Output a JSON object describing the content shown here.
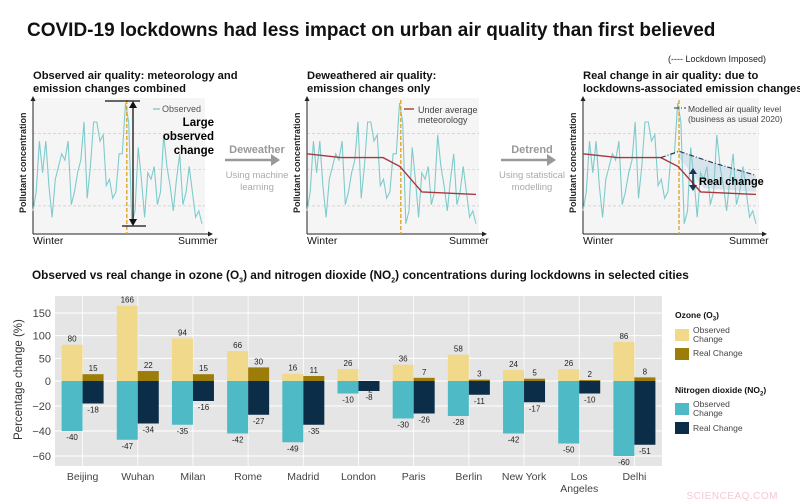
{
  "title": "COVID-19 lockdowns had less impact on urban air quality than first believed",
  "lockdown_legend": "(---- Lockdown Imposed)",
  "panels": [
    {
      "title_line1": "Observed air quality: meteorology and",
      "title_line2": "emission changes combined",
      "legend": "Observed",
      "annotation_line1": "Large observed",
      "annotation_line2": "change",
      "ylabel": "Pollutant concentration",
      "x_start": "Winter",
      "x_end": "Summer"
    },
    {
      "title_line1": "Deweathered air quality:",
      "title_line2": "emission changes only",
      "legend_line1": "Under average",
      "legend_line2": "meteorology",
      "ylabel": "Pollutant concentration",
      "x_start": "Winter",
      "x_end": "Summer"
    },
    {
      "title_line1": "Real change in air quality: due to",
      "title_line2": "lockdowns-associated emission changes",
      "legend_line1": "Modelled air quality level",
      "legend_line2": "(business as usual 2020)",
      "annotation": "Real change",
      "ylabel": "Pollutant concentration",
      "x_start": "Winter",
      "x_end": "Summer"
    }
  ],
  "steps": [
    {
      "label": "Deweather",
      "sub_line1": "Using machine",
      "sub_line2": "learning"
    },
    {
      "label": "Detrend",
      "sub_line1": "Using statistical",
      "sub_line2": "modelling"
    }
  ],
  "colors": {
    "observed_line": "#7fcbcc",
    "deweathered_line": "#a8383f",
    "modelled_line": "#1d3550",
    "lockdown": "#e0a020",
    "o3_observed": "#f0d98a",
    "o3_real": "#9c7d0a",
    "no2_observed": "#4dbac6",
    "no2_real": "#0c2d48"
  },
  "chart_title": "Observed vs real change in ozone (O3) and nitrogen dioxide (NO2) concentrations during lockdowns in selected cities",
  "chart_data": {
    "type": "bar",
    "title": "Observed vs real change in ozone (O3) and nitrogen dioxide (NO2) concentrations during lockdowns in selected cities",
    "xlabel": "",
    "ylabel": "Percentage change (%)",
    "y_ticks": [
      150,
      100,
      50,
      0,
      -20,
      -40,
      -60
    ],
    "y_tick_labels": [
      "150",
      "100",
      "50",
      "0",
      "−20",
      "−40",
      "−60"
    ],
    "ylim": [
      -65,
      175
    ],
    "scale_note": "broken axis: positive and negative halves use different scales",
    "grid": true,
    "legend_placement": "right",
    "categories": [
      "Beijing",
      "Wuhan",
      "Milan",
      "Rome",
      "Madrid",
      "London",
      "Paris",
      "Berlin",
      "New York",
      "Los Angeles",
      "Delhi"
    ],
    "category_labels": [
      [
        "Beijing"
      ],
      [
        "Wuhan"
      ],
      [
        "Milan"
      ],
      [
        "Rome"
      ],
      [
        "Madrid"
      ],
      [
        "London"
      ],
      [
        "Paris"
      ],
      [
        "Berlin"
      ],
      [
        "New York"
      ],
      [
        "Los",
        "Angeles"
      ],
      [
        "Delhi"
      ]
    ],
    "legend_groups": [
      {
        "title": "Ozone (O3)",
        "items": [
          "Observed Change",
          "Real Change"
        ]
      },
      {
        "title": "Nitrogen dioxide (NO2)",
        "items": [
          "Observed Change",
          "Real Change"
        ]
      }
    ],
    "series": [
      {
        "name": "Ozone (O3) Observed Change",
        "color": "#f0d98a",
        "values": [
          80,
          166,
          94,
          66,
          16,
          26,
          36,
          58,
          24,
          26,
          86
        ]
      },
      {
        "name": "Ozone (O3) Real Change",
        "color": "#9c7d0a",
        "values": [
          15,
          22,
          15,
          30,
          11,
          -2,
          7,
          3,
          5,
          2,
          8
        ]
      },
      {
        "name": "Nitrogen dioxide (NO2) Observed Change",
        "color": "#4dbac6",
        "values": [
          -40,
          -47,
          -35,
          -42,
          -49,
          -10,
          -30,
          -28,
          -42,
          -50,
          -60
        ]
      },
      {
        "name": "Nitrogen dioxide (NO2) Real Change",
        "color": "#0c2d48",
        "values": [
          -18,
          -34,
          -16,
          -27,
          -35,
          -8,
          -26,
          -11,
          -17,
          -10,
          -51
        ]
      }
    ]
  },
  "watermark": "SCIENCEAQ.COM"
}
